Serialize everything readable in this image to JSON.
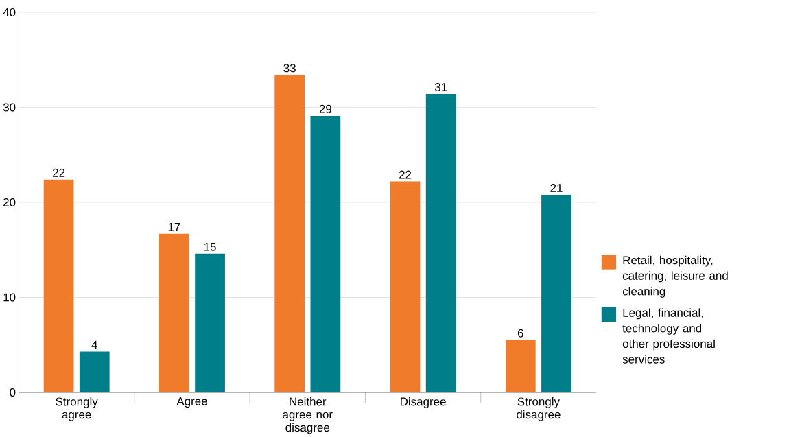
{
  "chart_data": {
    "type": "bar",
    "categories": [
      "Strongly agree",
      "Agree",
      "Neither agree nor disagree",
      "Disagree",
      "Strongly disagree"
    ],
    "series": [
      {
        "name": "Retail, hospitality, catering, leisure and cleaning",
        "color": "#f07b2a",
        "values": [
          22.4,
          16.7,
          33.4,
          22.2,
          5.5
        ],
        "value_labels": [
          "22",
          "17",
          "33",
          "22",
          "6"
        ]
      },
      {
        "name": "Legal, financial, technology and other professional services",
        "color": "#007f8b",
        "values": [
          4.3,
          14.6,
          29.1,
          31.4,
          20.8
        ],
        "value_labels": [
          "4",
          "15",
          "29",
          "31",
          "21"
        ]
      }
    ],
    "ylim": [
      0,
      40
    ],
    "yticks": [
      0,
      10,
      20,
      30,
      40
    ],
    "grid": "y",
    "legend": "right"
  }
}
